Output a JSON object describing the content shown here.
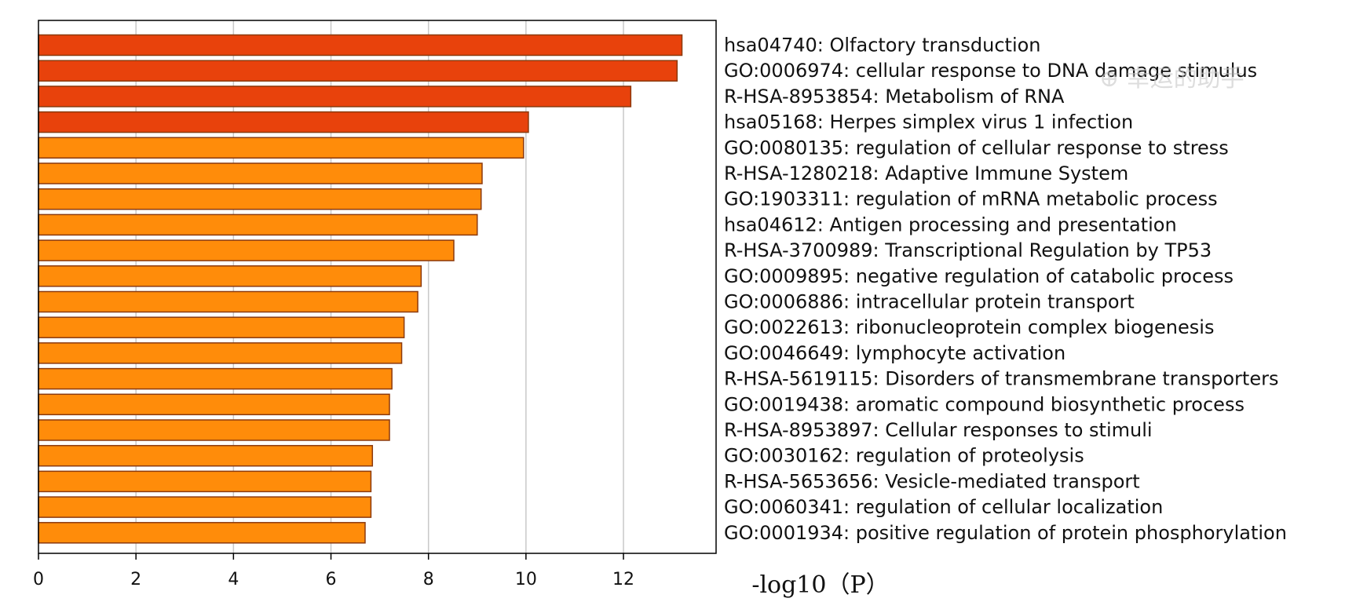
{
  "chart_data": {
    "type": "bar",
    "orientation": "horizontal",
    "categories": [
      "hsa04740: Olfactory transduction",
      "GO:0006974: cellular response to DNA damage stimulus",
      "R-HSA-8953854: Metabolism of RNA",
      "hsa05168: Herpes simplex virus 1 infection",
      "GO:0080135: regulation of cellular response to stress",
      "R-HSA-1280218: Adaptive Immune System",
      "GO:1903311: regulation of mRNA metabolic process",
      "hsa04612: Antigen processing and presentation",
      "R-HSA-3700989: Transcriptional Regulation by TP53",
      "GO:0009895: negative regulation of catabolic process",
      "GO:0006886: intracellular protein transport",
      "GO:0022613: ribonucleoprotein complex biogenesis",
      "GO:0046649: lymphocyte activation",
      "R-HSA-5619115: Disorders of transmembrane transporters",
      "GO:0019438: aromatic compound biosynthetic process",
      "R-HSA-8953897: Cellular responses to stimuli",
      "GO:0030162: regulation of proteolysis",
      "R-HSA-5653656: Vesicle-mediated transport",
      "GO:0060341: regulation of cellular localization",
      "GO:0001934: positive regulation of protein phosphorylation"
    ],
    "values": [
      13.2,
      13.1,
      12.15,
      10.05,
      9.95,
      9.1,
      9.08,
      9.0,
      8.52,
      7.85,
      7.78,
      7.5,
      7.45,
      7.25,
      7.2,
      7.2,
      6.85,
      6.82,
      6.82,
      6.7
    ],
    "bar_colors": [
      "#e8420c",
      "#e8420c",
      "#e8420c",
      "#e8420c",
      "#ff8c0a",
      "#ff8c0a",
      "#ff8c0a",
      "#ff8c0a",
      "#ff8c0a",
      "#ff8c0a",
      "#ff8c0a",
      "#ff8c0a",
      "#ff8c0a",
      "#ff8c0a",
      "#ff8c0a",
      "#ff8c0a",
      "#ff8c0a",
      "#ff8c0a",
      "#ff8c0a",
      "#ff8c0a"
    ],
    "edge_color": "#8b3a0e",
    "xlim": [
      0,
      13.9
    ],
    "xticks": [
      0,
      2,
      4,
      6,
      8,
      10,
      12
    ],
    "xlabel": "-log10（P）",
    "grid": "vertical",
    "legend": "none"
  },
  "watermark": "⊕ 幸运的助手"
}
